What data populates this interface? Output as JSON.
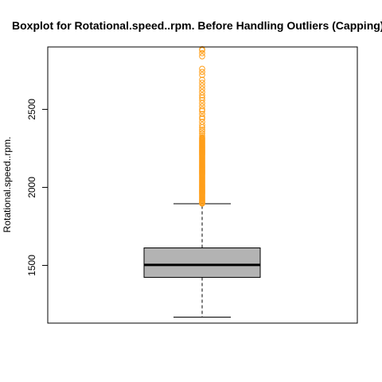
{
  "chart_data": {
    "type": "boxplot",
    "title": "Boxplot for Rotational.speed..rpm. Before Handling Outliers (Capping)",
    "xlabel": "",
    "ylabel": "Rotational.speed..rpm.",
    "ylim": [
      1130,
      2900
    ],
    "yticks": [
      1500,
      2000,
      2500
    ],
    "grid": false,
    "box": {
      "min_whisker": 1168,
      "q1": 1423,
      "median": 1503,
      "q3": 1612,
      "max_whisker": 1895
    },
    "outliers": [
      1896,
      1900,
      1905,
      1910,
      1915,
      1920,
      1925,
      1930,
      1935,
      1940,
      1945,
      1950,
      1955,
      1960,
      1965,
      1970,
      1975,
      1980,
      1985,
      1990,
      1995,
      2000,
      2005,
      2010,
      2015,
      2020,
      2025,
      2030,
      2035,
      2040,
      2045,
      2050,
      2055,
      2060,
      2065,
      2070,
      2075,
      2080,
      2085,
      2090,
      2095,
      2100,
      2105,
      2110,
      2115,
      2120,
      2125,
      2130,
      2135,
      2140,
      2145,
      2150,
      2155,
      2160,
      2165,
      2170,
      2175,
      2180,
      2185,
      2190,
      2195,
      2200,
      2205,
      2210,
      2215,
      2220,
      2225,
      2230,
      2235,
      2240,
      2245,
      2250,
      2255,
      2260,
      2265,
      2270,
      2275,
      2280,
      2285,
      2290,
      2295,
      2300,
      2305,
      2310,
      2315,
      2320,
      2330,
      2345,
      2360,
      2370,
      2385,
      2400,
      2420,
      2440,
      2450,
      2470,
      2490,
      2500,
      2520,
      2540,
      2560,
      2575,
      2590,
      2610,
      2630,
      2650,
      2670,
      2690,
      2720,
      2740,
      2760,
      2840,
      2860,
      2880,
      2886
    ],
    "colors": {
      "box_fill": "#b3b3b3",
      "outlier": "#ff9f1a",
      "line": "#000000"
    }
  }
}
